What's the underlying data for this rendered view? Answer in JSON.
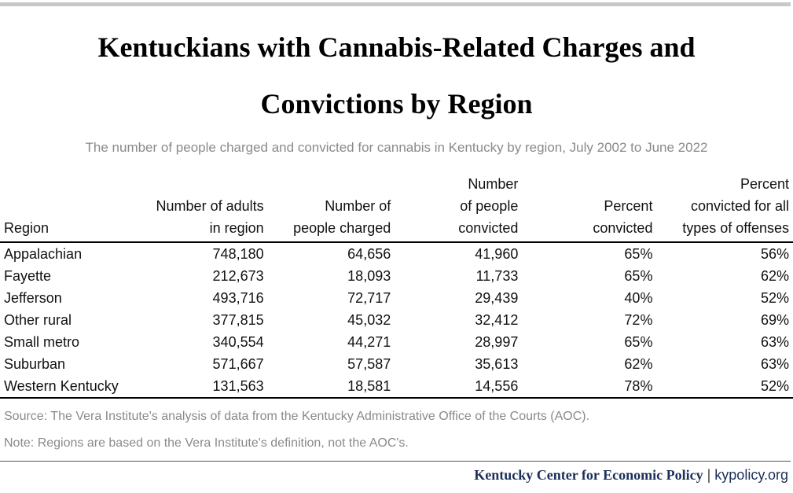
{
  "title": {
    "line1": "Kentuckians with Cannabis-Related Charges and",
    "line2": "Convictions by Region"
  },
  "subtitle": "The number of people charged and convicted for cannabis in Kentucky by region, July 2002 to June 2022",
  "table": {
    "headers": {
      "region": "Region",
      "adults": [
        "Number of adults",
        "in region"
      ],
      "charged": [
        "Number of",
        "people charged"
      ],
      "convicted": [
        "Number",
        "of people",
        "convicted"
      ],
      "pct_convicted": [
        "Percent",
        "convicted"
      ],
      "pct_all": [
        "Percent",
        "convicted for all",
        "types of offenses"
      ]
    },
    "rows": [
      [
        "Appalachian",
        "748,180",
        "64,656",
        "41,960",
        "65%",
        "56%"
      ],
      [
        "Fayette",
        "212,673",
        "18,093",
        "11,733",
        "65%",
        "62%"
      ],
      [
        "Jefferson",
        "493,716",
        "72,717",
        "29,439",
        "40%",
        "52%"
      ],
      [
        "Other rural",
        "377,815",
        "45,032",
        "32,412",
        "72%",
        "69%"
      ],
      [
        "Small metro",
        "340,554",
        "44,271",
        "28,997",
        "65%",
        "63%"
      ],
      [
        "Suburban",
        "571,667",
        "57,587",
        "35,613",
        "62%",
        "63%"
      ],
      [
        "Western Kentucky",
        "131,563",
        "18,581",
        "14,556",
        "78%",
        "52%"
      ]
    ]
  },
  "source": "Source: The Vera Institute's analysis of data from the Kentucky Administrative Office of the Courts (AOC).",
  "note": "Note: Regions are based on the Vera Institute's definition, not the AOC's.",
  "footer": {
    "org": "Kentucky Center for Economic Policy",
    "separator": "|",
    "site": "kypolicy.org",
    "brand_color": "#1c2f5a"
  }
}
